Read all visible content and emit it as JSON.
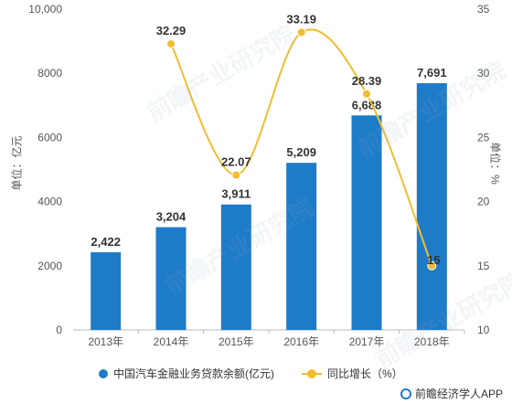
{
  "chart_data": {
    "type": "bar",
    "categories": [
      "2013年",
      "2014年",
      "2015年",
      "2016年",
      "2017年",
      "2018年"
    ],
    "series": [
      {
        "name": "中国汽车金融业务贷款余额(亿元)",
        "type": "bar",
        "axis": "left",
        "values": [
          2422,
          3204,
          3911,
          5209,
          6688,
          7691
        ],
        "labels": [
          "2,422",
          "3,204",
          "3,911",
          "5,209",
          "6,688",
          "7,691"
        ],
        "color": "#1e7bc8"
      },
      {
        "name": "同比增长（%）",
        "type": "line",
        "axis": "right",
        "values": [
          null,
          32.29,
          22.07,
          33.19,
          28.39,
          15
        ],
        "labels": [
          "",
          "32.29",
          "22.07",
          "33.19",
          "28.39",
          "15"
        ],
        "color": "#f3bd2f"
      }
    ],
    "y_left": {
      "title": "单位：亿元",
      "min": 0,
      "max": 10000,
      "ticks": [
        0,
        2000,
        4000,
        6000,
        8000,
        10000
      ],
      "tick_labels": [
        "0",
        "2000",
        "4000",
        "6000",
        "8000",
        "10,000"
      ]
    },
    "y_right": {
      "title": "单位：%",
      "min": 10,
      "max": 35,
      "ticks": [
        10,
        15,
        20,
        25,
        30,
        35
      ],
      "tick_labels": [
        "10",
        "15",
        "20",
        "25",
        "30",
        "35"
      ]
    },
    "grid": false,
    "legend": "bottom"
  },
  "watermark": "前瞻产业研究院",
  "credit": "前瞻经济学人APP"
}
